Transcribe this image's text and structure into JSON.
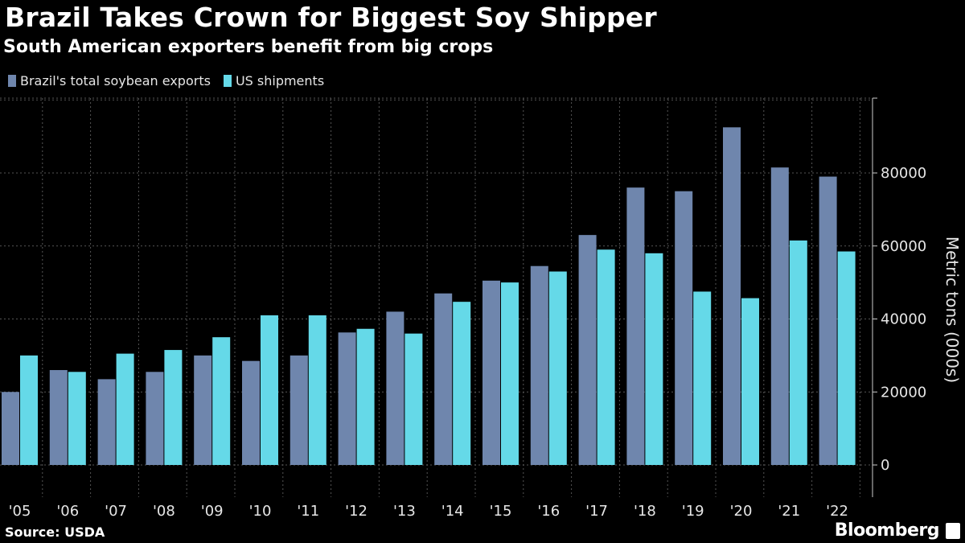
{
  "header": {
    "title": "Brazil Takes Crown for Biggest Soy Shipper",
    "subtitle": "South American exporters benefit from big crops"
  },
  "footer": {
    "source": "Source: USDA",
    "brand": "Bloomberg"
  },
  "chart_data": {
    "type": "bar",
    "categories": [
      "'05",
      "'06",
      "'07",
      "'08",
      "'09",
      "'10",
      "'11",
      "'12",
      "'13",
      "'14",
      "'15",
      "'16",
      "'17",
      "'18",
      "'19",
      "'20",
      "'21",
      "'22"
    ],
    "series": [
      {
        "name": "Brazil's total soybean exports",
        "color": "#6f86ad",
        "values": [
          20000,
          26000,
          23500,
          25500,
          30000,
          28500,
          30000,
          36300,
          42000,
          47000,
          50500,
          54500,
          63000,
          76000,
          75000,
          92500,
          81500,
          79000
        ]
      },
      {
        "name": "US shipments",
        "color": "#65d9e8",
        "values": [
          30000,
          25500,
          30500,
          31500,
          35000,
          41000,
          41000,
          37300,
          36000,
          44700,
          50000,
          53000,
          59000,
          58000,
          47500,
          45700,
          61500,
          58500
        ]
      }
    ],
    "ylabel": "Metric tons (000s)",
    "ylim": [
      0,
      100000
    ],
    "yticks": [
      0,
      20000,
      40000,
      60000,
      80000
    ],
    "grid": true,
    "legend": "top-left"
  }
}
